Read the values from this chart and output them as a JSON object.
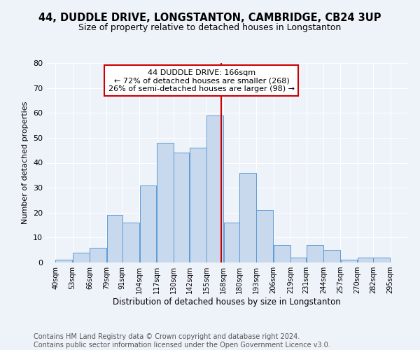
{
  "title1": "44, DUDDLE DRIVE, LONGSTANTON, CAMBRIDGE, CB24 3UP",
  "title2": "Size of property relative to detached houses in Longstanton",
  "xlabel": "Distribution of detached houses by size in Longstanton",
  "ylabel": "Number of detached properties",
  "footer1": "Contains HM Land Registry data © Crown copyright and database right 2024.",
  "footer2": "Contains public sector information licensed under the Open Government Licence v3.0.",
  "annotation_line1": "44 DUDDLE DRIVE: 166sqm",
  "annotation_line2": "← 72% of detached houses are smaller (268)",
  "annotation_line3": "26% of semi-detached houses are larger (98) →",
  "property_size": 166,
  "bar_left_edges": [
    40,
    53,
    66,
    79,
    91,
    104,
    117,
    130,
    142,
    155,
    168,
    180,
    193,
    206,
    219,
    231,
    244,
    257,
    270,
    282
  ],
  "bar_heights": [
    1,
    4,
    6,
    19,
    16,
    31,
    48,
    44,
    46,
    59,
    16,
    36,
    21,
    7,
    2,
    7,
    5,
    1,
    2,
    2
  ],
  "bar_widths": [
    13,
    13,
    13,
    12,
    13,
    13,
    13,
    12,
    13,
    13,
    12,
    13,
    13,
    13,
    12,
    13,
    13,
    13,
    12,
    13
  ],
  "tick_labels": [
    "40sqm",
    "53sqm",
    "66sqm",
    "79sqm",
    "91sqm",
    "104sqm",
    "117sqm",
    "130sqm",
    "142sqm",
    "155sqm",
    "168sqm",
    "180sqm",
    "193sqm",
    "206sqm",
    "219sqm",
    "231sqm",
    "244sqm",
    "257sqm",
    "270sqm",
    "282sqm",
    "295sqm"
  ],
  "tick_positions": [
    40,
    53,
    66,
    79,
    91,
    104,
    117,
    130,
    142,
    155,
    168,
    180,
    193,
    206,
    219,
    231,
    244,
    257,
    270,
    282,
    295
  ],
  "ylim": [
    0,
    80
  ],
  "yticks": [
    0,
    10,
    20,
    30,
    40,
    50,
    60,
    70,
    80
  ],
  "bar_face_color": "#c9d9ed",
  "bar_edge_color": "#5b9bd5",
  "vline_color": "#cc0000",
  "annotation_box_edge": "#cc0000",
  "bg_color": "#eef2f9",
  "grid_color": "#ffffff",
  "title1_fontsize": 10.5,
  "title2_fontsize": 9,
  "annotation_fontsize": 8,
  "footer_fontsize": 7,
  "ylabel_fontsize": 8,
  "xlabel_fontsize": 8.5
}
